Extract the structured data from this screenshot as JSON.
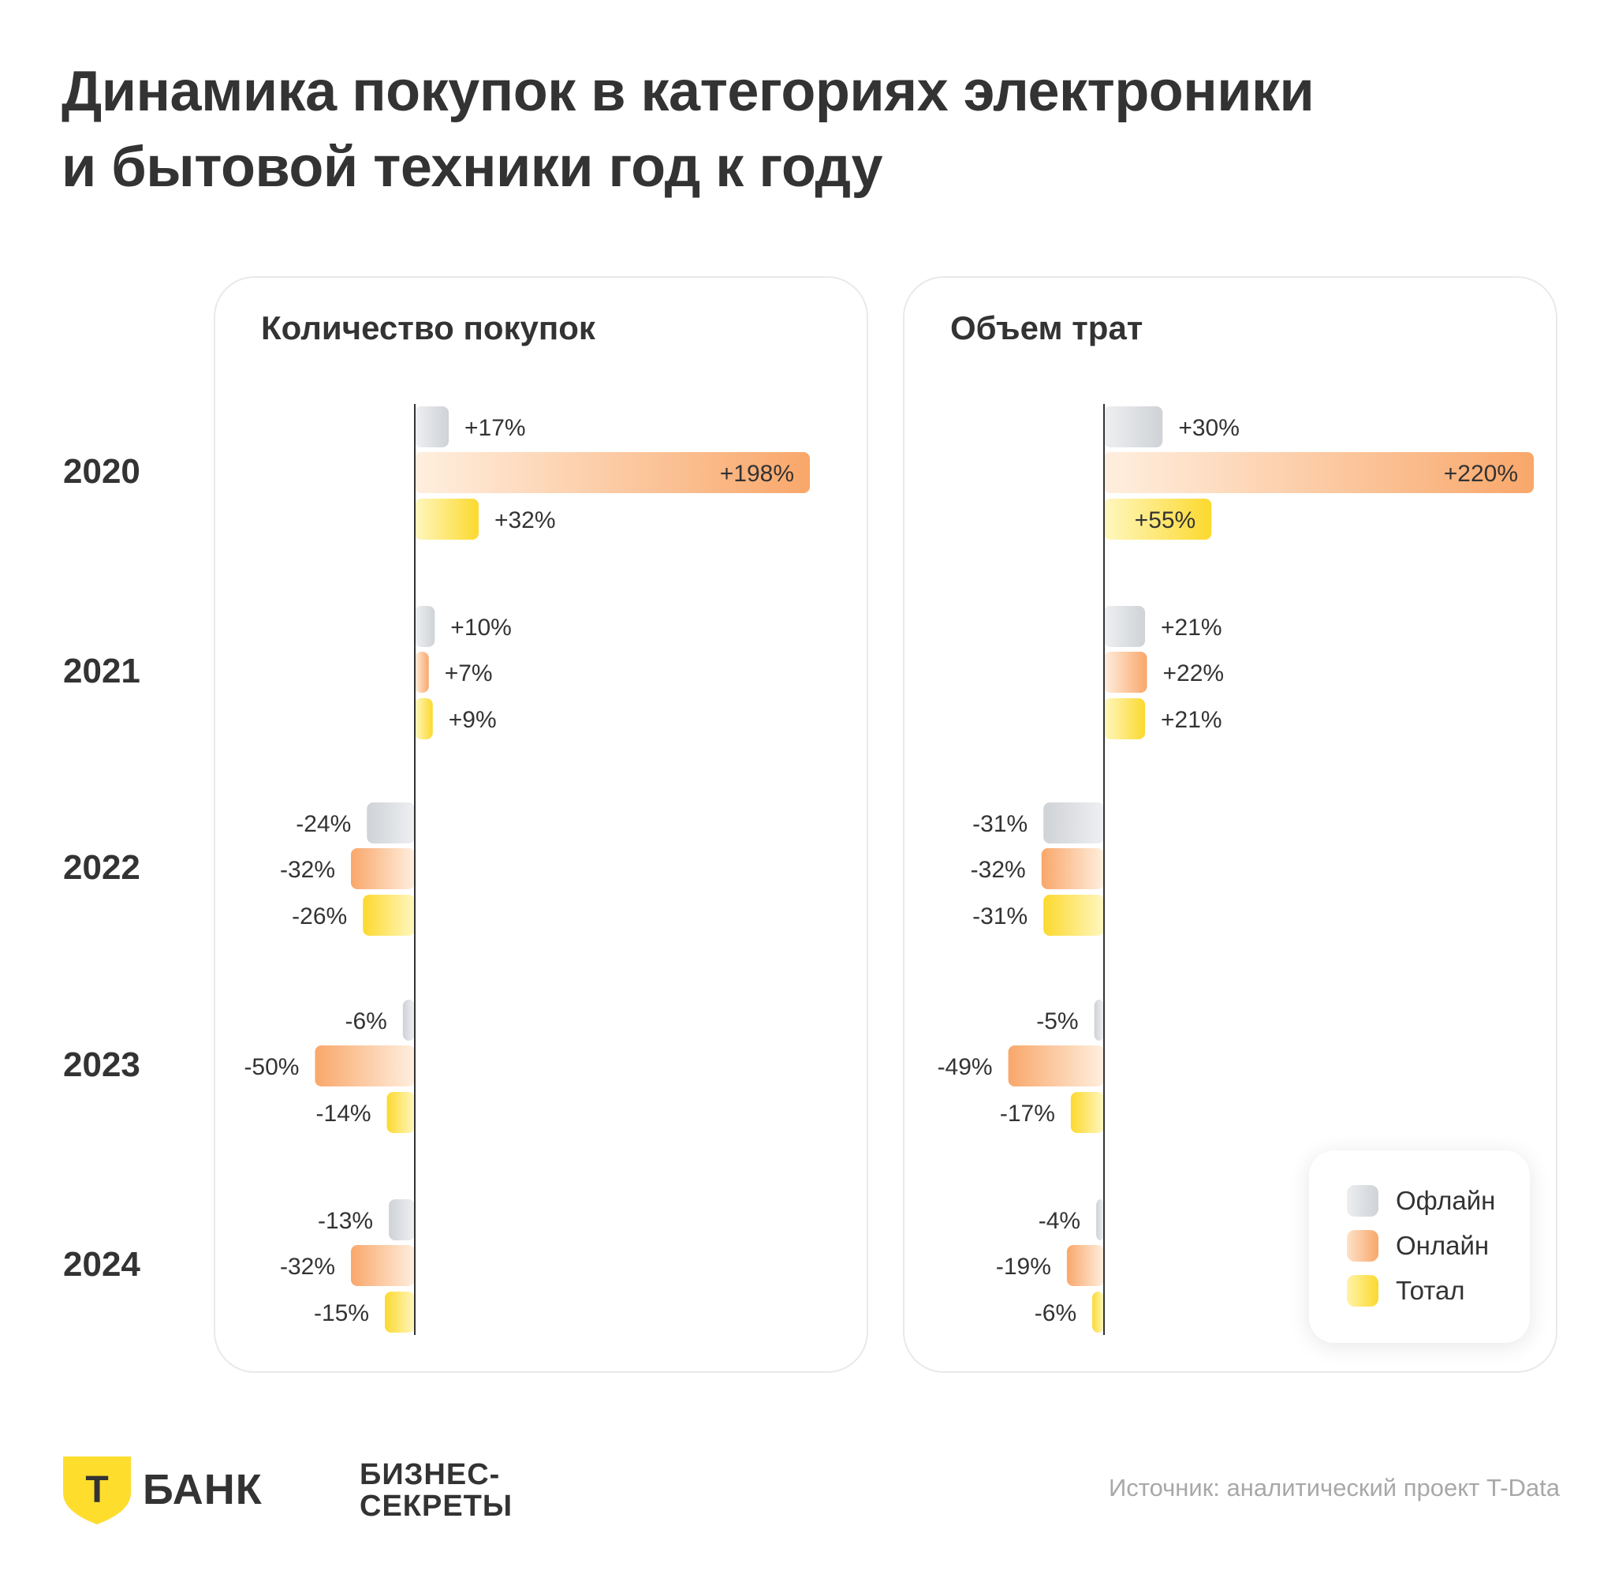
{
  "title_line1": "Динамика покупок в категориях электроники",
  "title_line2": "и бытовой техники год к году",
  "years": [
    "2020",
    "2021",
    "2022",
    "2023",
    "2024"
  ],
  "legend": {
    "offline": "Офлайн",
    "online": "Онлайн",
    "total": "Тотал"
  },
  "colors": {
    "offline": "#d4d6da",
    "online": "#f9a76a",
    "total": "#fcd92e"
  },
  "chart_data": [
    {
      "type": "bar",
      "orientation": "horizontal",
      "title": "Количество покупок",
      "categories": [
        "2020",
        "2021",
        "2022",
        "2023",
        "2024"
      ],
      "series": [
        {
          "name": "Офлайн",
          "values": [
            17,
            10,
            -24,
            -6,
            -13
          ],
          "labels": [
            "+17%",
            "+10%",
            "-24%",
            "-6%",
            "-13%"
          ]
        },
        {
          "name": "Онлайн",
          "values": [
            198,
            7,
            -32,
            -50,
            -32
          ],
          "labels": [
            "+198%",
            "+7%",
            "-32%",
            "-50%",
            "-32%"
          ]
        },
        {
          "name": "Тотал",
          "values": [
            32,
            9,
            -26,
            -14,
            -15
          ],
          "labels": [
            "+32%",
            "+9%",
            "-26%",
            "-14%",
            "-15%"
          ]
        }
      ],
      "legend": "none"
    },
    {
      "type": "bar",
      "orientation": "horizontal",
      "title": "Объем трат",
      "categories": [
        "2020",
        "2021",
        "2022",
        "2023",
        "2024"
      ],
      "series": [
        {
          "name": "Офлайн",
          "values": [
            30,
            21,
            -31,
            -5,
            -4
          ],
          "labels": [
            "+30%",
            "+21%",
            "-31%",
            "-5%",
            "-4%"
          ]
        },
        {
          "name": "Онлайн",
          "values": [
            220,
            22,
            -32,
            -49,
            -19
          ],
          "labels": [
            "+220%",
            "+22%",
            "-32%",
            "-49%",
            "-19%"
          ]
        },
        {
          "name": "Тотал",
          "values": [
            55,
            21,
            -31,
            -17,
            -6
          ],
          "labels": [
            "+55%",
            "+21%",
            "-31%",
            "-17%",
            "-6%"
          ]
        }
      ],
      "legend": "bottom-right"
    }
  ],
  "footer": {
    "bank_logo_letter": "Т",
    "bank_name": "БАНК",
    "bs_line1": "БИЗНЕС-",
    "bs_line2": "СЕКРЕТЫ",
    "source": "Источник: аналитический проект T-Data"
  }
}
